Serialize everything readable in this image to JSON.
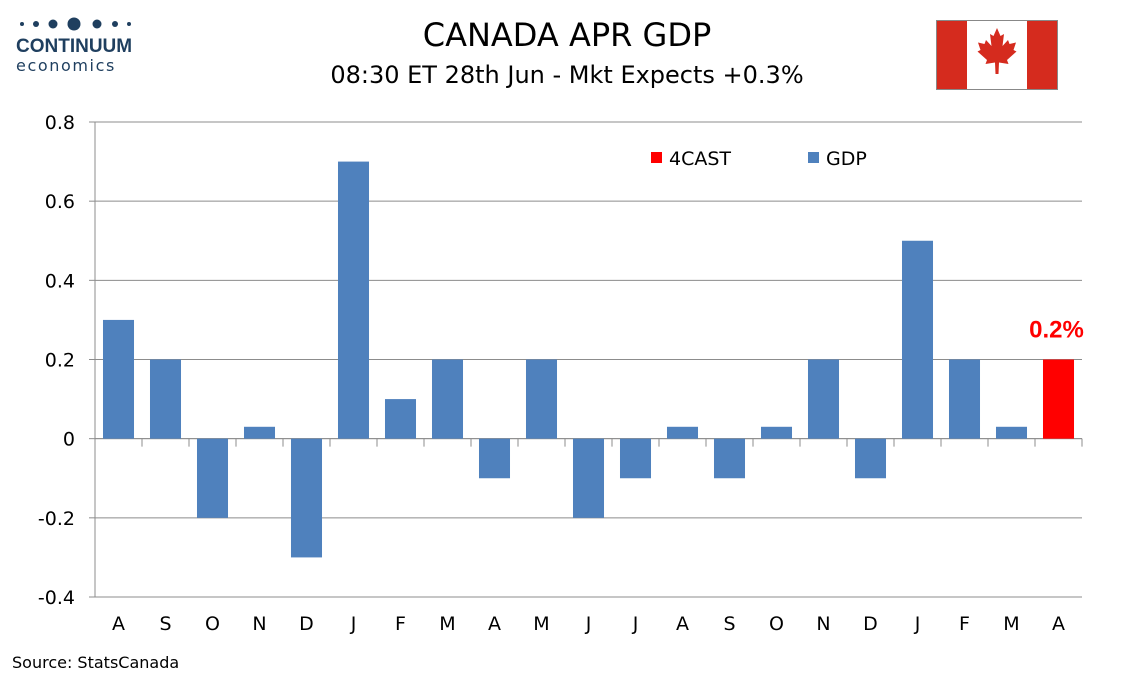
{
  "logo": {
    "line1": "CONTINUUM",
    "line2": "economics",
    "color": "#1f3f5f"
  },
  "header": {
    "title": "CANADA APR GDP",
    "subtitle": "08:30 ET 28th Jun - Mkt Expects +0.3%"
  },
  "flag": {
    "icon": "canada-flag-icon",
    "red": "#d52b1e"
  },
  "source": "Source: StatsCanada",
  "chart_data": {
    "type": "bar",
    "categories": [
      "A",
      "S",
      "O",
      "N",
      "D",
      "J",
      "F",
      "M",
      "A",
      "M",
      "J",
      "J",
      "A",
      "S",
      "O",
      "N",
      "D",
      "J",
      "F",
      "M",
      "A"
    ],
    "series": [
      {
        "name": "GDP",
        "color": "#4f81bd",
        "values": [
          0.3,
          0.2,
          -0.2,
          0.03,
          -0.3,
          0.7,
          0.1,
          0.2,
          -0.1,
          0.2,
          -0.2,
          -0.1,
          0.03,
          -0.1,
          0.03,
          0.2,
          -0.1,
          0.5,
          0.2,
          0.03,
          null
        ]
      },
      {
        "name": "4CAST",
        "color": "#ff0000",
        "values": [
          null,
          null,
          null,
          null,
          null,
          null,
          null,
          null,
          null,
          null,
          null,
          null,
          null,
          null,
          null,
          null,
          null,
          null,
          null,
          null,
          0.2
        ]
      }
    ],
    "ylim": [
      -0.4,
      0.8
    ],
    "yticks": [
      "-0.4",
      "-0.2",
      "0",
      "0.2",
      "0.4",
      "0.6",
      "0.8"
    ],
    "grid": true,
    "legend_position": "top-right",
    "legend_order": [
      "4CAST",
      "GDP"
    ],
    "annotation": {
      "text": "0.2%",
      "category_index": 20,
      "value": 0.2,
      "color": "#ff0000"
    }
  }
}
